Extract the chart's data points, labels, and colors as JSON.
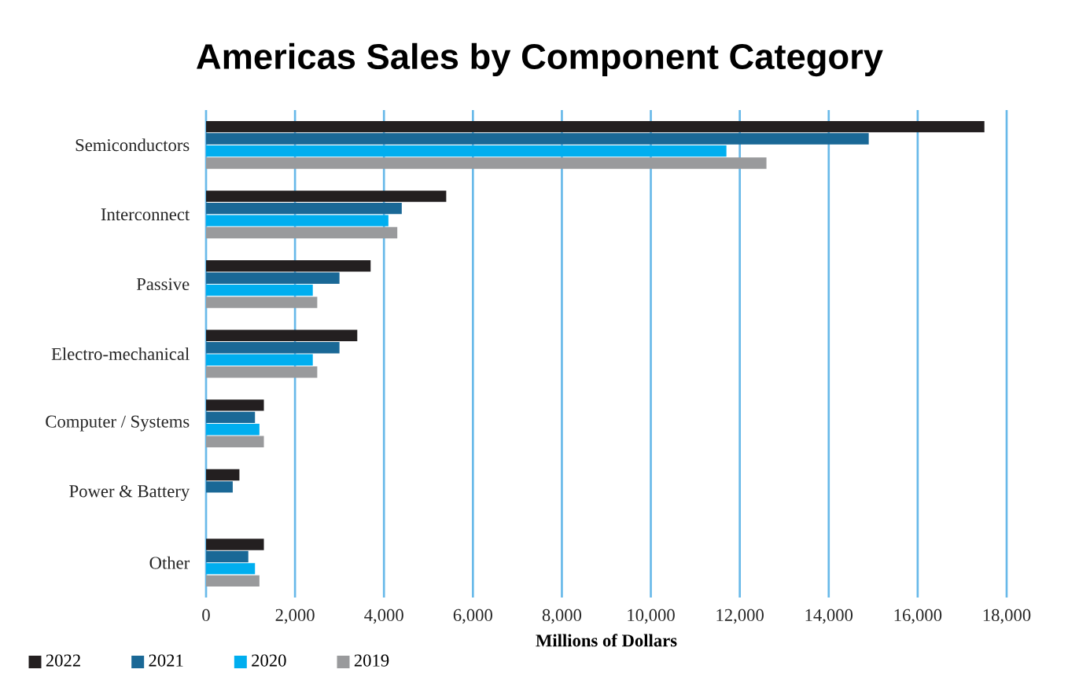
{
  "chart_data": {
    "type": "bar",
    "orientation": "horizontal",
    "title": "Americas Sales by Component Category",
    "xlabel": "Millions of Dollars",
    "categories": [
      "Semiconductors",
      "Interconnect",
      "Passive",
      "Electro-mechanical",
      "Computer / Systems",
      "Power & Battery",
      "Other"
    ],
    "series": [
      {
        "name": "2022",
        "color": "#231f20",
        "values": [
          17500,
          5400,
          3700,
          3400,
          1300,
          750,
          1300
        ]
      },
      {
        "name": "2021",
        "color": "#1a6896",
        "values": [
          14900,
          4400,
          3000,
          3000,
          1100,
          600,
          950
        ]
      },
      {
        "name": "2020",
        "color": "#00aeef",
        "values": [
          11700,
          4100,
          2400,
          2400,
          1200,
          null,
          1100
        ]
      },
      {
        "name": "2019",
        "color": "#999a9c",
        "values": [
          12600,
          4300,
          2500,
          2500,
          1300,
          null,
          1200
        ]
      }
    ],
    "xlim": [
      0,
      18000
    ],
    "xticks": [
      0,
      {
        "value": 2000,
        "label": "2,000"
      },
      {
        "value": 4000,
        "label": "4,000"
      },
      {
        "value": 6000,
        "label": "6,000"
      },
      {
        "value": 8000,
        "label": "8,000"
      },
      {
        "value": 10000,
        "label": "10,000"
      },
      {
        "value": 12000,
        "label": "12,000"
      },
      {
        "value": 14000,
        "label": "14,000"
      },
      {
        "value": 16000,
        "label": "16,000"
      },
      {
        "value": 18000,
        "label": "18,000"
      }
    ],
    "grid": "x",
    "legend": "bottom left"
  }
}
